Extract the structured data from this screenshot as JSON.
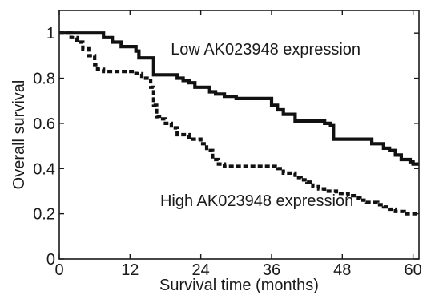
{
  "chart_data": {
    "type": "line",
    "xlabel": "Survival time (months)",
    "ylabel": "Overall survival",
    "xlim": [
      0,
      61
    ],
    "ylim": [
      0,
      1.1
    ],
    "x_ticks": [
      0,
      12,
      24,
      36,
      48,
      60
    ],
    "y_ticks": [
      0,
      0.2,
      0.4,
      0.6,
      0.8,
      1
    ],
    "x_tick_labels": [
      "0",
      "12",
      "24",
      "36",
      "48",
      "60"
    ],
    "y_tick_labels": [
      "0",
      "0.2",
      "0.4",
      "0.6",
      "0.8",
      "1"
    ],
    "grid": false,
    "step": true,
    "series": [
      {
        "name": "Low AK023948 expression",
        "style": "solid",
        "color": "#111111",
        "x": [
          0,
          7.5,
          9,
          10.5,
          13,
          13.5,
          16,
          20,
          21,
          22,
          23,
          25.5,
          26.5,
          28,
          30,
          32,
          36,
          37,
          38,
          40,
          45,
          46,
          46.5,
          53,
          55,
          56,
          57,
          58,
          59.5,
          60,
          61
        ],
        "y": [
          1.0,
          0.98,
          0.96,
          0.94,
          0.92,
          0.89,
          0.815,
          0.8,
          0.79,
          0.78,
          0.76,
          0.74,
          0.73,
          0.72,
          0.71,
          0.71,
          0.68,
          0.66,
          0.64,
          0.61,
          0.6,
          0.59,
          0.53,
          0.51,
          0.49,
          0.48,
          0.46,
          0.44,
          0.43,
          0.42,
          0.42
        ]
      },
      {
        "name": "High AK023948 expression",
        "style": "dashed",
        "color": "#111111",
        "x": [
          0,
          2,
          3,
          4,
          5,
          6,
          6.5,
          7.5,
          13,
          14,
          15.5,
          16,
          16.5,
          17,
          18,
          19,
          20,
          22,
          24,
          25,
          26,
          27,
          28,
          37,
          38,
          40,
          41,
          42,
          43,
          44,
          45,
          46,
          47,
          49,
          50,
          51,
          52,
          54,
          55,
          56,
          57,
          58,
          58.5,
          61
        ],
        "y": [
          1.0,
          0.98,
          0.96,
          0.93,
          0.9,
          0.86,
          0.84,
          0.83,
          0.82,
          0.8,
          0.76,
          0.68,
          0.63,
          0.62,
          0.6,
          0.58,
          0.55,
          0.53,
          0.51,
          0.48,
          0.44,
          0.42,
          0.41,
          0.4,
          0.38,
          0.36,
          0.35,
          0.34,
          0.32,
          0.31,
          0.3,
          0.3,
          0.29,
          0.28,
          0.27,
          0.26,
          0.25,
          0.24,
          0.23,
          0.22,
          0.21,
          0.21,
          0.2,
          0.2
        ]
      }
    ],
    "annotations": [
      {
        "text": "Low AK023948 expression",
        "x": 35,
        "y": 0.905
      },
      {
        "text": "High AK023948 expression",
        "x": 33.5,
        "y": 0.235
      }
    ]
  }
}
